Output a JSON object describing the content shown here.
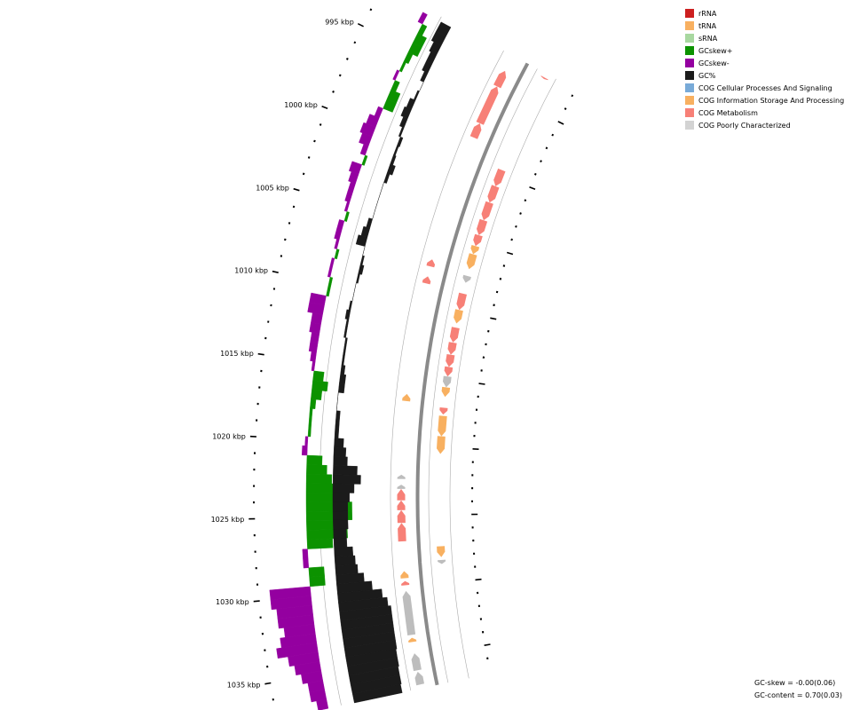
{
  "map": {
    "ticks": [
      {
        "kbp": 995,
        "label": "995 kbp"
      },
      {
        "kbp": 1000,
        "label": "1000 kbp"
      },
      {
        "kbp": 1005,
        "label": "1005 kbp"
      },
      {
        "kbp": 1010,
        "label": "1010 kbp"
      },
      {
        "kbp": 1015,
        "label": "1015 kbp"
      },
      {
        "kbp": 1020,
        "label": "1020 kbp"
      },
      {
        "kbp": 1025,
        "label": "1025 kbp"
      },
      {
        "kbp": 1030,
        "label": "1030 kbp"
      },
      {
        "kbp": 1035,
        "label": "1035 kbp"
      }
    ],
    "features": [
      {
        "strand": "+",
        "cog": "metabolism",
        "start": 992.8,
        "end": 992.9
      },
      {
        "strand": "-",
        "cog": "metabolism",
        "start": 993.6,
        "end": 994.7
      },
      {
        "strand": "-",
        "cog": "metabolism",
        "start": 994.7,
        "end": 997.3
      },
      {
        "strand": "-",
        "cog": "metabolism",
        "start": 997.3,
        "end": 998.3
      },
      {
        "strand": "+",
        "cog": "metabolism",
        "start": 999.6,
        "end": 1000.8
      },
      {
        "strand": "+",
        "cog": "metabolism",
        "start": 1000.8,
        "end": 1002.0
      },
      {
        "strand": "+",
        "cog": "metabolism",
        "start": 1002.0,
        "end": 1003.3
      },
      {
        "strand": "+",
        "cog": "metabolism",
        "start": 1003.3,
        "end": 1004.4
      },
      {
        "strand": "+",
        "cog": "metabolism",
        "start": 1004.4,
        "end": 1005.2
      },
      {
        "strand": "+",
        "cog": "information",
        "start": 1005.2,
        "end": 1005.8
      },
      {
        "strand": "+",
        "cog": "information",
        "start": 1005.8,
        "end": 1006.9
      },
      {
        "strand": "-",
        "cog": "metabolism",
        "start": 1006.9,
        "end": 1007.4
      },
      {
        "strand": "+",
        "cog": "poorly",
        "start": 1007.4,
        "end": 1007.9
      },
      {
        "strand": "-",
        "cog": "metabolism",
        "start": 1008.1,
        "end": 1008.6
      },
      {
        "strand": "+",
        "cog": "metabolism",
        "start": 1008.7,
        "end": 1009.9
      },
      {
        "strand": "+",
        "cog": "information",
        "start": 1009.9,
        "end": 1010.9
      },
      {
        "strand": "+",
        "cog": "metabolism",
        "start": 1011.2,
        "end": 1012.3
      },
      {
        "strand": "+",
        "cog": "metabolism",
        "start": 1012.3,
        "end": 1013.2
      },
      {
        "strand": "+",
        "cog": "metabolism",
        "start": 1013.2,
        "end": 1014.1
      },
      {
        "strand": "+",
        "cog": "metabolism",
        "start": 1014.1,
        "end": 1014.8
      },
      {
        "strand": "+",
        "cog": "poorly",
        "start": 1014.8,
        "end": 1015.6
      },
      {
        "strand": "+",
        "cog": "information",
        "start": 1015.6,
        "end": 1016.3
      },
      {
        "strand": "-",
        "cog": "information",
        "start": 1016.4,
        "end": 1016.9
      },
      {
        "strand": "+",
        "cog": "metabolism",
        "start": 1017.1,
        "end": 1017.6
      },
      {
        "strand": "+",
        "cog": "information",
        "start": 1017.7,
        "end": 1019.2
      },
      {
        "strand": "+",
        "cog": "information",
        "start": 1019.2,
        "end": 1020.5
      },
      {
        "strand": "-",
        "cog": "poorly",
        "start": 1022.1,
        "end": 1022.4
      },
      {
        "strand": "-",
        "cog": "poorly",
        "start": 1022.8,
        "end": 1023.1
      },
      {
        "strand": "-",
        "cog": "metabolism",
        "start": 1023.1,
        "end": 1023.9
      },
      {
        "strand": "-",
        "cog": "metabolism",
        "start": 1023.9,
        "end": 1024.6
      },
      {
        "strand": "-",
        "cog": "metabolism",
        "start": 1024.6,
        "end": 1025.5
      },
      {
        "strand": "-",
        "cog": "metabolism",
        "start": 1025.5,
        "end": 1026.8
      },
      {
        "strand": "+",
        "cog": "information",
        "start": 1027.3,
        "end": 1028.1
      },
      {
        "strand": "+",
        "cog": "poorly",
        "start": 1028.3,
        "end": 1028.6
      },
      {
        "strand": "-",
        "cog": "information",
        "start": 1028.9,
        "end": 1029.4
      },
      {
        "strand": "-",
        "cog": "metabolism",
        "start": 1029.6,
        "end": 1029.9
      },
      {
        "strand": "-",
        "cog": "poorly",
        "start": 1030.3,
        "end": 1033.4
      },
      {
        "strand": "-",
        "cog": "information",
        "start": 1033.6,
        "end": 1033.9
      },
      {
        "strand": "-",
        "cog": "poorly",
        "start": 1034.7,
        "end": 1035.9
      },
      {
        "strand": "-",
        "cog": "poorly",
        "start": 1036.0,
        "end": 1036.9
      }
    ],
    "gc_skew": [
      {
        "kbp": 992.8,
        "value": -0.01
      },
      {
        "kbp": 993.4,
        "value": 0.01
      },
      {
        "kbp": 994.0,
        "value": 0.02
      },
      {
        "kbp": 994.6,
        "value": 0.02
      },
      {
        "kbp": 995.2,
        "value": 0.01
      },
      {
        "kbp": 995.8,
        "value": 0.005
      },
      {
        "kbp": 996.4,
        "value": -0.005
      },
      {
        "kbp": 997.0,
        "value": 0.01
      },
      {
        "kbp": 997.6,
        "value": 0.02
      },
      {
        "kbp": 998.2,
        "value": 0.02
      },
      {
        "kbp": 998.8,
        "value": -0.01
      },
      {
        "kbp": 999.4,
        "value": -0.02
      },
      {
        "kbp": 1000.0,
        "value": -0.025
      },
      {
        "kbp": 1000.6,
        "value": -0.02
      },
      {
        "kbp": 1001.2,
        "value": -0.01
      },
      {
        "kbp": 1001.8,
        "value": 0.005
      },
      {
        "kbp": 1002.4,
        "value": -0.02
      },
      {
        "kbp": 1003.0,
        "value": -0.015
      },
      {
        "kbp": 1003.6,
        "value": -0.01
      },
      {
        "kbp": 1004.2,
        "value": -0.01
      },
      {
        "kbp": 1004.8,
        "value": -0.005
      },
      {
        "kbp": 1005.4,
        "value": 0.005
      },
      {
        "kbp": 1006.0,
        "value": -0.01
      },
      {
        "kbp": 1006.6,
        "value": -0.01
      },
      {
        "kbp": 1007.2,
        "value": -0.005
      },
      {
        "kbp": 1007.8,
        "value": 0.005
      },
      {
        "kbp": 1008.4,
        "value": -0.005
      },
      {
        "kbp": 1009.0,
        "value": -0.005
      },
      {
        "kbp": 1009.6,
        "value": 0.005
      },
      {
        "kbp": 1010.2,
        "value": 0.005
      },
      {
        "kbp": 1010.8,
        "value": -0.03
      },
      {
        "kbp": 1011.4,
        "value": -0.03
      },
      {
        "kbp": 1012.0,
        "value": -0.02
      },
      {
        "kbp": 1012.6,
        "value": -0.02
      },
      {
        "kbp": 1013.2,
        "value": -0.015
      },
      {
        "kbp": 1013.8,
        "value": -0.015
      },
      {
        "kbp": 1014.4,
        "value": -0.01
      },
      {
        "kbp": 1015.0,
        "value": -0.005
      },
      {
        "kbp": 1015.6,
        "value": 0.02
      },
      {
        "kbp": 1016.2,
        "value": 0.03
      },
      {
        "kbp": 1016.8,
        "value": 0.02
      },
      {
        "kbp": 1017.4,
        "value": 0.01
      },
      {
        "kbp": 1018.0,
        "value": 0.005
      },
      {
        "kbp": 1018.6,
        "value": 0.005
      },
      {
        "kbp": 1019.2,
        "value": 0.005
      },
      {
        "kbp": 1019.8,
        "value": -0.005
      },
      {
        "kbp": 1020.4,
        "value": -0.01
      },
      {
        "kbp": 1021.0,
        "value": 0.03
      },
      {
        "kbp": 1021.6,
        "value": 0.04
      },
      {
        "kbp": 1022.2,
        "value": 0.05
      },
      {
        "kbp": 1022.8,
        "value": 0.07
      },
      {
        "kbp": 1023.4,
        "value": 0.08
      },
      {
        "kbp": 1024.0,
        "value": 0.09
      },
      {
        "kbp": 1024.6,
        "value": 0.09
      },
      {
        "kbp": 1025.2,
        "value": 0.08
      },
      {
        "kbp": 1025.8,
        "value": 0.08
      },
      {
        "kbp": 1026.4,
        "value": 0.05
      },
      {
        "kbp": 1027.0,
        "value": -0.01
      },
      {
        "kbp": 1027.6,
        "value": -0.01
      },
      {
        "kbp": 1028.2,
        "value": 0.03
      },
      {
        "kbp": 1028.8,
        "value": 0.03
      },
      {
        "kbp": 1029.4,
        "value": -0.08
      },
      {
        "kbp": 1030.0,
        "value": -0.08
      },
      {
        "kbp": 1030.6,
        "value": -0.07
      },
      {
        "kbp": 1031.2,
        "value": -0.07
      },
      {
        "kbp": 1031.8,
        "value": -0.06
      },
      {
        "kbp": 1032.4,
        "value": -0.07
      },
      {
        "kbp": 1033.0,
        "value": -0.08
      },
      {
        "kbp": 1033.6,
        "value": -0.06
      },
      {
        "kbp": 1034.2,
        "value": -0.05
      },
      {
        "kbp": 1034.8,
        "value": -0.04
      },
      {
        "kbp": 1035.4,
        "value": -0.03
      },
      {
        "kbp": 1036.0,
        "value": -0.03
      },
      {
        "kbp": 1036.6,
        "value": -0.02
      }
    ],
    "gc_content": [
      {
        "kbp": 992.8,
        "value": 0.7
      },
      {
        "kbp": 993.4,
        "value": 0.7
      },
      {
        "kbp": 994.0,
        "value": 0.703
      },
      {
        "kbp": 994.6,
        "value": 0.705
      },
      {
        "kbp": 995.2,
        "value": 0.705
      },
      {
        "kbp": 995.8,
        "value": 0.708
      },
      {
        "kbp": 996.4,
        "value": 0.712
      },
      {
        "kbp": 997.0,
        "value": 0.71
      },
      {
        "kbp": 997.6,
        "value": 0.706
      },
      {
        "kbp": 998.2,
        "value": 0.704
      },
      {
        "kbp": 998.8,
        "value": 0.707
      },
      {
        "kbp": 999.4,
        "value": 0.71
      },
      {
        "kbp": 1000.0,
        "value": 0.715
      },
      {
        "kbp": 1000.6,
        "value": 0.714
      },
      {
        "kbp": 1001.2,
        "value": 0.715
      },
      {
        "kbp": 1001.8,
        "value": 0.718
      },
      {
        "kbp": 1002.4,
        "value": 0.715
      },
      {
        "kbp": 1003.0,
        "value": 0.712
      },
      {
        "kbp": 1003.6,
        "value": 0.712
      },
      {
        "kbp": 1004.2,
        "value": 0.712
      },
      {
        "kbp": 1004.8,
        "value": 0.712
      },
      {
        "kbp": 1005.4,
        "value": 0.708
      },
      {
        "kbp": 1006.0,
        "value": 0.705
      },
      {
        "kbp": 1006.6,
        "value": 0.702
      },
      {
        "kbp": 1007.2,
        "value": 0.712
      },
      {
        "kbp": 1007.8,
        "value": 0.714
      },
      {
        "kbp": 1008.4,
        "value": 0.716
      },
      {
        "kbp": 1009.0,
        "value": 0.714
      },
      {
        "kbp": 1009.6,
        "value": 0.712
      },
      {
        "kbp": 1010.2,
        "value": 0.712
      },
      {
        "kbp": 1010.8,
        "value": 0.71
      },
      {
        "kbp": 1011.4,
        "value": 0.708
      },
      {
        "kbp": 1012.0,
        "value": 0.71
      },
      {
        "kbp": 1012.6,
        "value": 0.71
      },
      {
        "kbp": 1013.2,
        "value": 0.714
      },
      {
        "kbp": 1013.8,
        "value": 0.714
      },
      {
        "kbp": 1014.4,
        "value": 0.714
      },
      {
        "kbp": 1015.0,
        "value": 0.716
      },
      {
        "kbp": 1015.6,
        "value": 0.718
      },
      {
        "kbp": 1016.2,
        "value": 0.718
      },
      {
        "kbp": 1016.8,
        "value": 0.712
      },
      {
        "kbp": 1017.4,
        "value": 0.712
      },
      {
        "kbp": 1018.0,
        "value": 0.716
      },
      {
        "kbp": 1018.6,
        "value": 0.716
      },
      {
        "kbp": 1019.2,
        "value": 0.716
      },
      {
        "kbp": 1019.8,
        "value": 0.722
      },
      {
        "kbp": 1020.4,
        "value": 0.725
      },
      {
        "kbp": 1021.0,
        "value": 0.727
      },
      {
        "kbp": 1021.6,
        "value": 0.738
      },
      {
        "kbp": 1022.2,
        "value": 0.742
      },
      {
        "kbp": 1022.8,
        "value": 0.735
      },
      {
        "kbp": 1023.4,
        "value": 0.73
      },
      {
        "kbp": 1024.0,
        "value": 0.728
      },
      {
        "kbp": 1024.6,
        "value": 0.728
      },
      {
        "kbp": 1025.2,
        "value": 0.728
      },
      {
        "kbp": 1025.8,
        "value": 0.726
      },
      {
        "kbp": 1026.4,
        "value": 0.726
      },
      {
        "kbp": 1027.0,
        "value": 0.732
      },
      {
        "kbp": 1027.6,
        "value": 0.734
      },
      {
        "kbp": 1028.2,
        "value": 0.736
      },
      {
        "kbp": 1028.8,
        "value": 0.742
      },
      {
        "kbp": 1029.4,
        "value": 0.75
      },
      {
        "kbp": 1030.0,
        "value": 0.76
      },
      {
        "kbp": 1030.6,
        "value": 0.765
      },
      {
        "kbp": 1031.2,
        "value": 0.768
      },
      {
        "kbp": 1031.8,
        "value": 0.768
      },
      {
        "kbp": 1032.4,
        "value": 0.768
      },
      {
        "kbp": 1033.0,
        "value": 0.768
      },
      {
        "kbp": 1033.6,
        "value": 0.768
      },
      {
        "kbp": 1034.2,
        "value": 0.767
      },
      {
        "kbp": 1034.8,
        "value": 0.767
      },
      {
        "kbp": 1035.4,
        "value": 0.766
      },
      {
        "kbp": 1036.0,
        "value": 0.766
      },
      {
        "kbp": 1036.6,
        "value": 0.765
      }
    ]
  },
  "legend": {
    "items": [
      {
        "key": "rrna",
        "label": "rRNA",
        "color": "#cc1f1f"
      },
      {
        "key": "trna",
        "label": "tRNA",
        "color": "#f8b060"
      },
      {
        "key": "srna",
        "label": "sRNA",
        "color": "#a8d8a0"
      },
      {
        "key": "gcskew-plus",
        "label": "GCskew+",
        "color": "#0c9200"
      },
      {
        "key": "gcskew-minus",
        "label": "GCskew-",
        "color": "#9400a0"
      },
      {
        "key": "gc-percent",
        "label": "GC%",
        "color": "#1b1b1b"
      },
      {
        "key": "cog-cellular",
        "label": "COG Cellular Processes And Signaling",
        "color": "#78aad8"
      },
      {
        "key": "cog-information",
        "label": "COG Information Storage And Processing",
        "color": "#f8b060"
      },
      {
        "key": "cog-metabolism",
        "label": "COG Metabolism",
        "color": "#f78077"
      },
      {
        "key": "cog-poorly",
        "label": "COG Poorly Characterized",
        "color": "#d3d3d3"
      }
    ]
  },
  "stats": {
    "gc_skew": "GC-skew = -0.00(0.06)",
    "gc_content": "GC-content = 0.70(0.03)"
  },
  "colors": {
    "metabolism": "#f78077",
    "information": "#f8b060",
    "poorly": "#bdbdbd",
    "gcskew_plus": "#0c9200",
    "gcskew_minus": "#9400a0",
    "gc": "#1b1b1b",
    "backbone": "#8a8a8a",
    "guide": "#aaaaaa"
  }
}
